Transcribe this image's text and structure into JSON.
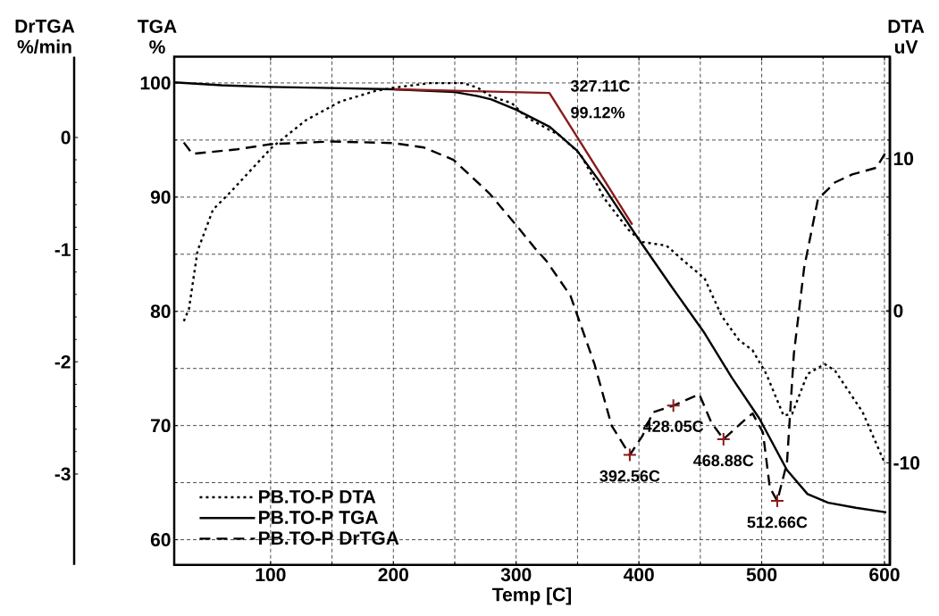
{
  "chart_data": {
    "type": "line",
    "xlabel": "Temp [C]",
    "ylabel": "TGA %",
    "y2label": "DTA uV",
    "y3label": "DrTGA %/min",
    "xlim": [
      21.5,
      604.4
    ],
    "xticks": [
      100,
      200,
      300,
      400,
      500,
      600
    ],
    "ylim": [
      57.8,
      102.3
    ],
    "yticks": [
      60,
      70,
      80,
      90,
      100
    ],
    "y2lim": [
      -16.7,
      16.7
    ],
    "y2ticks": [
      -10,
      0,
      10
    ],
    "y3lim": [
      -3.81,
      0.72
    ],
    "y3ticks": [
      -3,
      -2,
      -1,
      0
    ],
    "grid": true,
    "legend": "bottom left",
    "annotations": [
      {
        "text": "327.11C",
        "x": 327.11,
        "y": 99.12
      },
      {
        "text": "99.12%",
        "x": 327.11,
        "y": 99.12
      },
      {
        "text": "392.56C",
        "x": 392.56,
        "y": 67.45
      },
      {
        "text": "428.05C",
        "x": 428.05,
        "y": 71.8
      },
      {
        "text": "468.88C",
        "x": 468.88,
        "y": 68.8
      },
      {
        "text": "512.66C",
        "x": 512.66,
        "y": 63.4
      }
    ],
    "series": [
      {
        "name": "PB.TO-P DTA",
        "axis": "y2",
        "color": "#000000",
        "line_style": "dotted",
        "x": [
          29.3,
          33.5,
          40.5,
          53.1,
          67.1,
          100.7,
          128.7,
          156.7,
          184.6,
          200,
          229.5,
          257.4,
          268.6,
          279.8,
          296.6,
          307.9,
          335.9,
          352.6,
          372.3,
          391.8,
          402.9,
          422.5,
          436.6,
          453.4,
          467.4,
          481.4,
          492.6,
          503.8,
          517.8,
          524.8,
          537.3,
          551.3,
          559.8,
          582.2,
          600.3
        ],
        "values": [
          -0.68,
          0.12,
          3.94,
          6.65,
          7.78,
          10.71,
          12.52,
          13.75,
          14.43,
          14.66,
          14.96,
          14.96,
          14.66,
          14.09,
          13.64,
          12.74,
          11.5,
          10.26,
          7.33,
          5.3,
          4.52,
          4.28,
          3.27,
          2.14,
          -0.34,
          -1.92,
          -2.6,
          -4.16,
          -6.89,
          -6.77,
          -4.16,
          -3.5,
          -3.95,
          -6.66,
          -10.03
        ]
      },
      {
        "name": "PB.TO-P TGA",
        "color": "#000000",
        "line_style": "solid",
        "x": [
          21.5,
          60,
          100,
          150,
          200,
          250,
          268.6,
          279.8,
          300,
          327.4,
          349.7,
          372.3,
          400.2,
          425.4,
          453.4,
          475.6,
          498.2,
          520.6,
          537.3,
          554.2,
          576.6,
          601.5
        ],
        "values": [
          100.05,
          99.8,
          99.65,
          99.55,
          99.45,
          99.2,
          98.85,
          98.55,
          97.66,
          96.15,
          94.06,
          90.74,
          86.25,
          82.34,
          78.1,
          74.2,
          70.6,
          66.1,
          64.0,
          63.24,
          62.8,
          62.4
        ]
      },
      {
        "name": "PB.TO-P DrTGA",
        "axis": "y3",
        "color": "#000000",
        "line_style": "dashed",
        "x": [
          29.3,
          36.3,
          72.7,
          100,
          149.6,
          200,
          225,
          249,
          278.3,
          300.7,
          314.7,
          324.6,
          344.2,
          363.8,
          377.8,
          392.56,
          402.9,
          411.4,
          428.05,
          449.2,
          458.9,
          468.88,
          487,
          492.6,
          501,
          506.6,
          512.66,
          520.6,
          526.2,
          534.6,
          545.8,
          559.8,
          573.7,
          593.4,
          601.7
        ],
        "values": [
          -0.045,
          -0.146,
          -0.106,
          -0.06,
          -0.036,
          -0.05,
          -0.09,
          -0.2,
          -0.5,
          -0.79,
          -0.98,
          -1.1,
          -1.41,
          -2.02,
          -2.57,
          -2.83,
          -2.66,
          -2.45,
          -2.39,
          -2.29,
          -2.54,
          -2.69,
          -2.51,
          -2.46,
          -2.63,
          -3.12,
          -3.24,
          -2.9,
          -1.93,
          -1.16,
          -0.55,
          -0.4,
          -0.33,
          -0.27,
          -0.12
        ]
      },
      {
        "color": "#8b1a1a",
        "line_style": "solid",
        "x": [
          200,
          327.11,
          394.6
        ],
        "values": [
          99.45,
          99.12,
          87.6
        ]
      },
      {
        "type": "scatter",
        "axis": "y3",
        "color": "#8b1a1a",
        "marker": "cross",
        "x": [
          392.56,
          428.05,
          468.88,
          512.66
        ],
        "values": [
          -2.83,
          -2.39,
          -2.69,
          -3.24
        ]
      }
    ]
  }
}
